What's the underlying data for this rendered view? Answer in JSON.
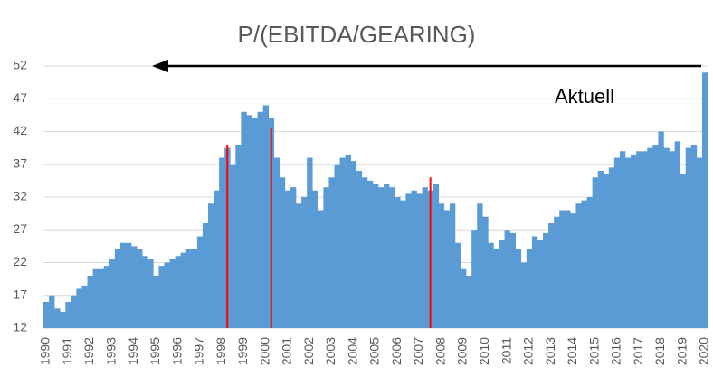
{
  "chart_data": {
    "type": "bar",
    "title": "P/(EBITDA/GEARING)",
    "annotation": "Aktuell",
    "categories": [
      "1990",
      null,
      null,
      null,
      "1991",
      null,
      null,
      null,
      "1992",
      null,
      null,
      null,
      "1993",
      null,
      null,
      null,
      "1994",
      null,
      null,
      null,
      "1995",
      null,
      null,
      null,
      "1996",
      null,
      null,
      null,
      "1997",
      null,
      null,
      null,
      "1998",
      null,
      null,
      null,
      "1999",
      null,
      null,
      null,
      "2000",
      null,
      null,
      null,
      "2001",
      null,
      null,
      null,
      "2002",
      null,
      null,
      null,
      "2003",
      null,
      null,
      null,
      "2004",
      null,
      null,
      null,
      "2005",
      null,
      null,
      null,
      "2006",
      null,
      null,
      null,
      "2007",
      null,
      null,
      null,
      "2008",
      null,
      null,
      null,
      "2009",
      null,
      null,
      null,
      "2010",
      null,
      null,
      null,
      "2011",
      null,
      null,
      null,
      "2012",
      null,
      null,
      null,
      "2013",
      null,
      null,
      null,
      "2014",
      null,
      null,
      null,
      "2015",
      null,
      null,
      null,
      "2016",
      null,
      null,
      null,
      "2017",
      null,
      null,
      null,
      "2018",
      null,
      null,
      null,
      "2019",
      null,
      null,
      null,
      "2020"
    ],
    "series": [
      {
        "color": "#5b9bd5",
        "values": [
          16,
          17,
          15,
          14.5,
          16,
          17,
          18,
          18.5,
          20,
          21,
          21,
          21.5,
          22.5,
          24,
          25,
          25,
          24.5,
          24,
          23,
          22.5,
          20,
          21.5,
          22,
          22.5,
          23,
          23.5,
          24,
          24,
          26,
          28,
          31,
          33,
          38,
          39.5,
          37,
          40,
          45,
          44.5,
          44,
          45,
          46,
          44,
          38,
          35,
          33,
          33.5,
          31,
          32,
          38,
          33,
          30,
          33.5,
          35,
          37,
          38,
          38.5,
          37.5,
          36,
          35,
          34.5,
          34,
          33.5,
          34,
          33.5,
          32,
          31.5,
          32.5,
          33,
          32.5,
          33.5,
          33,
          34,
          31,
          30,
          31,
          25,
          21,
          20,
          27,
          31,
          29,
          25,
          24,
          25.5,
          27,
          26.5,
          24,
          22,
          24,
          26,
          25.5,
          26.5,
          28,
          29,
          30,
          30,
          29.5,
          31,
          31.5,
          32,
          35,
          36,
          35.5,
          36.5,
          38,
          39,
          38,
          38.5,
          39,
          39,
          39.5,
          40,
          42,
          39.5,
          39,
          40.5,
          35.5,
          39.5,
          40,
          38,
          51
        ]
      },
      {
        "color": "#ff0000",
        "values": [
          null,
          null,
          null,
          null,
          null,
          null,
          null,
          null,
          null,
          null,
          null,
          null,
          null,
          null,
          null,
          null,
          null,
          null,
          null,
          null,
          null,
          null,
          null,
          null,
          null,
          null,
          null,
          null,
          null,
          null,
          null,
          null,
          null,
          40,
          null,
          null,
          null,
          null,
          null,
          null,
          null,
          42.5,
          null,
          null,
          null,
          null,
          null,
          null,
          null,
          null,
          null,
          null,
          null,
          null,
          null,
          null,
          null,
          null,
          null,
          null,
          null,
          null,
          null,
          null,
          null,
          null,
          null,
          null,
          null,
          null,
          35,
          null,
          null,
          null,
          null,
          null,
          null,
          null,
          null,
          null,
          null,
          null,
          null,
          null,
          null,
          null,
          null,
          null,
          null,
          null,
          null,
          null,
          null,
          null,
          null,
          null,
          null,
          null,
          null,
          null,
          null,
          null,
          null,
          null,
          null,
          null,
          null,
          null,
          null,
          null,
          null,
          null,
          null,
          null,
          null,
          null,
          null,
          null,
          null,
          null,
          null
        ]
      }
    ],
    "ylim": [
      12,
      52
    ],
    "yticks": [
      12,
      17,
      22,
      27,
      32,
      37,
      42,
      47,
      52
    ],
    "grid": true
  }
}
